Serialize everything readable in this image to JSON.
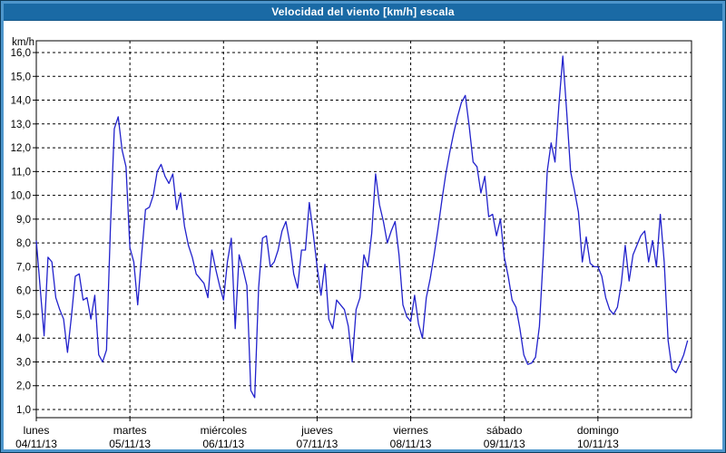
{
  "window": {
    "title": "Velocidad del viento [km/h] escala"
  },
  "colors": {
    "frame": "#4e96cc",
    "frame_edge": "#0d3c5c",
    "titlebar_bg": "#1a6aa5",
    "titlebar_text": "#ffffff",
    "plot_bg": "#ffffff",
    "grid": "#000000",
    "axis": "#000000",
    "label_text": "#000000",
    "line": "#2222cc"
  },
  "chart_data": {
    "type": "line",
    "title": "Velocidad del viento [km/h] escala",
    "unit_label": "km/h",
    "ylabel": "km/h",
    "xlabel": "",
    "ylim": [
      1,
      16
    ],
    "ytick_step": 1,
    "ytick_labels": [
      "16,0",
      "15,0",
      "14,0",
      "13,0",
      "12,0",
      "11,0",
      "10,0",
      "9,0",
      "8,0",
      "7,0",
      "6,0",
      "5,0",
      "4,0",
      "3,0",
      "2,0",
      "1,0"
    ],
    "grid": "dashed",
    "legend_position": "none",
    "points_per_day": 24,
    "x_days": [
      {
        "name": "lunes",
        "date": "04/11/13"
      },
      {
        "name": "martes",
        "date": "05/11/13"
      },
      {
        "name": "miércoles",
        "date": "06/11/13"
      },
      {
        "name": "jueves",
        "date": "07/11/13"
      },
      {
        "name": "viernes",
        "date": "08/11/13"
      },
      {
        "name": "sábado",
        "date": "09/11/13"
      },
      {
        "name": "domingo",
        "date": "10/11/13"
      }
    ],
    "series": [
      {
        "name": "Velocidad del viento",
        "color": "#2222cc",
        "values": [
          8.1,
          6.1,
          4.1,
          7.4,
          7.2,
          5.7,
          5.2,
          4.8,
          3.4,
          4.9,
          6.6,
          6.7,
          5.6,
          5.7,
          4.8,
          5.8,
          3.3,
          3.0,
          3.5,
          8.6,
          12.8,
          13.3,
          11.9,
          11.2,
          7.8,
          7.2,
          5.4,
          7.5,
          9.4,
          9.5,
          10.0,
          11.0,
          11.3,
          10.8,
          10.5,
          10.9,
          9.4,
          10.1,
          8.7,
          7.9,
          7.4,
          6.7,
          6.5,
          6.3,
          5.7,
          7.7,
          6.9,
          6.2,
          5.6,
          7.2,
          8.2,
          4.4,
          7.5,
          6.9,
          6.2,
          1.8,
          1.5,
          6.1,
          8.2,
          8.3,
          7.0,
          7.2,
          7.7,
          8.5,
          8.9,
          8.0,
          6.7,
          6.1,
          7.7,
          7.7,
          9.7,
          8.4,
          7.0,
          5.8,
          7.1,
          4.8,
          4.4,
          5.6,
          5.4,
          5.2,
          4.5,
          3.0,
          5.2,
          5.7,
          7.5,
          7.0,
          8.4,
          10.9,
          9.6,
          8.9,
          8.0,
          8.5,
          8.9,
          7.5,
          5.4,
          4.9,
          4.7,
          5.8,
          4.6,
          4.0,
          5.7,
          6.5,
          7.5,
          8.6,
          9.8,
          10.9,
          11.8,
          12.6,
          13.3,
          13.9,
          14.2,
          12.9,
          11.4,
          11.2,
          10.1,
          10.8,
          9.1,
          9.2,
          8.3,
          9.0,
          7.4,
          6.6,
          5.6,
          5.3,
          4.4,
          3.3,
          2.9,
          2.95,
          3.2,
          4.5,
          7.5,
          11.0,
          12.2,
          11.4,
          13.8,
          15.85,
          13.5,
          11.0,
          10.2,
          9.3,
          7.2,
          8.25,
          7.15,
          7.0,
          7.0,
          6.6,
          5.7,
          5.2,
          5.0,
          5.3,
          6.3,
          7.9,
          6.4,
          7.5,
          7.9,
          8.3,
          8.5,
          7.2,
          8.1,
          7.0,
          9.2,
          7.2,
          3.9,
          2.7,
          2.55,
          2.9,
          3.3,
          3.9
        ]
      }
    ]
  }
}
